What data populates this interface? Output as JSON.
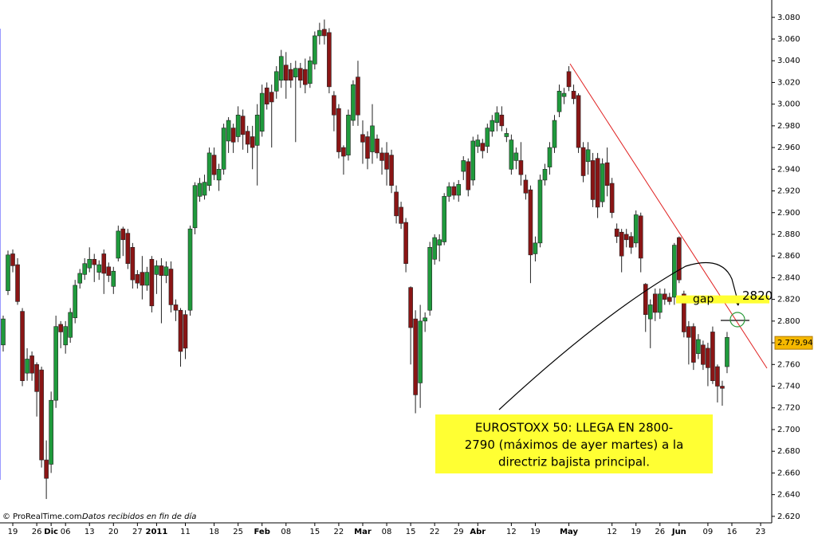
{
  "chart_data": {
    "type": "candlestick",
    "up_color": "#1f9a3c",
    "down_color": "#8a1515",
    "categories": [
      null,
      null,
      "19",
      null,
      null,
      null,
      null,
      "26",
      null,
      null,
      "Dic",
      null,
      null,
      "06",
      null,
      null,
      null,
      null,
      "13",
      null,
      null,
      null,
      null,
      "20",
      null,
      null,
      null,
      null,
      "27",
      null,
      null,
      null,
      "2011",
      null,
      null,
      null,
      null,
      null,
      "11",
      null,
      null,
      null,
      null,
      null,
      "18",
      null,
      null,
      null,
      null,
      "25",
      null,
      null,
      null,
      null,
      "Feb",
      null,
      null,
      null,
      null,
      "08",
      null,
      null,
      null,
      null,
      null,
      "15",
      null,
      null,
      null,
      null,
      "22",
      null,
      null,
      null,
      null,
      "Mar",
      null,
      null,
      null,
      null,
      "08",
      null,
      null,
      null,
      null,
      "15",
      null,
      null,
      null,
      null,
      "22",
      null,
      null,
      null,
      null,
      "29",
      null,
      null,
      null,
      "Abr",
      null,
      null,
      null,
      null,
      null,
      null,
      "12",
      null,
      null,
      null,
      null,
      "19",
      null,
      null,
      null,
      null,
      null,
      null,
      "May",
      null,
      null,
      null,
      null,
      null,
      null,
      null,
      null,
      "12",
      null,
      null,
      null,
      null,
      "19",
      null,
      null,
      null,
      null,
      "26",
      null,
      null,
      null,
      "Jun",
      null,
      null,
      null,
      null,
      null,
      "09",
      null,
      null,
      null,
      null,
      "16",
      null,
      null,
      null,
      null,
      null,
      "23",
      null
    ],
    "open": [
      2778,
      2828,
      2862,
      2852,
      2809,
      2752,
      2768,
      2760,
      2755,
      2672,
      2668,
      2727,
      2797,
      2778,
      2785,
      2803,
      2835,
      2843,
      2849,
      2857,
      2845,
      2862,
      2850,
      2832,
      2858,
      2885,
      2881,
      2868,
      2843,
      2845,
      2833,
      2857,
      2843,
      2851,
      2842,
      2848,
      2815,
      2810,
      2806,
      2810,
      2886,
      2915,
      2916,
      2925,
      2953,
      2930,
      2940,
      2966,
      2978,
      2970,
      2989,
      2975,
      2970,
      2962,
      2975,
      3015,
      3011,
      3012,
      3022,
      3036,
      3032,
      3025,
      3033,
      3032,
      3019,
      3037,
      3063,
      3069,
      3066,
      3008,
      2996,
      2960,
      2953,
      2985,
      3025,
      2972,
      2970,
      2956,
      2968,
      2955,
      2955,
      2953,
      2919,
      2905,
      2891,
      2831,
      2802,
      2743,
      2800,
      2810,
      2857,
      2870,
      2873,
      2915,
      2924,
      2916,
      2938,
      2947,
      2930,
      2961,
      2964,
      2961,
      2975,
      2983,
      2990,
      2970,
      2940,
      2948,
      2948,
      2930,
      2921,
      2862,
      2872,
      2930,
      2942,
      2960,
      2993,
      3007,
      3030,
      3012,
      3008,
      2960,
      2947,
      2948,
      2950,
      2910,
      2946,
      2927,
      2885,
      2882,
      2880,
      2878,
      2872,
      2897,
      2834,
      2802,
      2825,
      2808,
      2825,
      2822,
      2822,
      2877,
      2825,
      2795,
      2795,
      2770,
      2778,
      2775,
      2790,
      2758,
      2740,
      2758,
      null,
      null,
      null,
      null,
      null,
      null,
      null,
      null
    ],
    "high": [
      2805,
      2865,
      2866,
      2858,
      2812,
      2775,
      2772,
      2762,
      2758,
      2690,
      2735,
      2805,
      2800,
      2800,
      2812,
      2838,
      2848,
      2858,
      2868,
      2862,
      2856,
      2866,
      2854,
      2850,
      2888,
      2887,
      2885,
      2872,
      2847,
      2860,
      2850,
      2860,
      2856,
      2858,
      2855,
      2855,
      2820,
      2812,
      2810,
      2888,
      2928,
      2932,
      2935,
      2960,
      2960,
      2945,
      2982,
      2988,
      2982,
      2998,
      2995,
      2980,
      2980,
      3000,
      3018,
      3020,
      3018,
      3035,
      3050,
      3048,
      3038,
      3040,
      3038,
      3042,
      3044,
      3067,
      3075,
      3078,
      3070,
      3012,
      3000,
      2962,
      2995,
      3022,
      3040,
      2985,
      2975,
      3000,
      2972,
      2960,
      2965,
      2958,
      2925,
      2910,
      2895,
      2832,
      2810,
      2815,
      2808,
      2873,
      2880,
      2880,
      2918,
      2928,
      2928,
      2930,
      2952,
      2950,
      2970,
      2972,
      2968,
      2982,
      2990,
      2998,
      2998,
      2978,
      2972,
      2960,
      2965,
      2935,
      2925,
      2878,
      2935,
      2945,
      2965,
      2990,
      3018,
      3015,
      3035,
      3018,
      3010,
      2965,
      2965,
      2955,
      2955,
      2950,
      2960,
      2932,
      2890,
      2885,
      2885,
      2882,
      2902,
      2900,
      2835,
      2820,
      2830,
      2830,
      2830,
      2826,
      2872,
      2878,
      2828,
      2800,
      2798,
      2788,
      2782,
      2780,
      2795,
      2760,
      2745,
      2790,
      null,
      null,
      null,
      null,
      null,
      null,
      null,
      null
    ],
    "low": [
      2772,
      2824,
      2845,
      2815,
      2740,
      2745,
      2745,
      2712,
      2665,
      2636,
      2660,
      2720,
      2775,
      2770,
      2780,
      2798,
      2830,
      2838,
      2845,
      2836,
      2838,
      2825,
      2836,
      2825,
      2855,
      2860,
      2848,
      2830,
      2830,
      2820,
      2828,
      2808,
      2825,
      2798,
      2835,
      2808,
      2800,
      2758,
      2765,
      2805,
      2880,
      2910,
      2912,
      2920,
      2930,
      2920,
      2935,
      2955,
      2955,
      2965,
      2958,
      2955,
      2940,
      2925,
      2970,
      2995,
      2960,
      3005,
      3015,
      3005,
      3015,
      2965,
      3015,
      3010,
      3015,
      3032,
      3055,
      3055,
      3010,
      2975,
      2950,
      2935,
      2948,
      2980,
      2980,
      2945,
      2940,
      2945,
      2950,
      2935,
      2925,
      2918,
      2890,
      2885,
      2845,
      2760,
      2715,
      2720,
      2790,
      2805,
      2852,
      2855,
      2870,
      2910,
      2912,
      2910,
      2930,
      2915,
      2925,
      2955,
      2950,
      2955,
      2970,
      2975,
      2975,
      2965,
      2935,
      2940,
      2925,
      2912,
      2835,
      2855,
      2868,
      2925,
      2935,
      2955,
      2988,
      3000,
      3012,
      3000,
      2955,
      2928,
      2935,
      2905,
      2895,
      2905,
      2915,
      2895,
      2872,
      2845,
      2868,
      2862,
      2868,
      2845,
      2790,
      2775,
      2800,
      2802,
      2815,
      2815,
      2815,
      2835,
      2785,
      2760,
      2755,
      2765,
      2755,
      2740,
      2742,
      2725,
      2722,
      2752,
      null,
      null,
      null,
      null,
      null,
      null,
      null,
      null
    ],
    "close": [
      2802,
      2861,
      2851,
      2818,
      2745,
      2765,
      2752,
      2735,
      2672,
      2655,
      2727,
      2795,
      2790,
      2795,
      2808,
      2833,
      2844,
      2853,
      2857,
      2852,
      2852,
      2844,
      2842,
      2846,
      2883,
      2875,
      2853,
      2838,
      2835,
      2833,
      2845,
      2814,
      2851,
      2842,
      2850,
      2815,
      2810,
      2772,
      2775,
      2885,
      2925,
      2927,
      2928,
      2955,
      2935,
      2940,
      2978,
      2985,
      2965,
      2990,
      2972,
      2963,
      2960,
      2990,
      3010,
      3000,
      3002,
      3030,
      3044,
      3022,
      3022,
      3033,
      3022,
      3018,
      3040,
      3063,
      3068,
      3063,
      3016,
      2990,
      2956,
      2952,
      2990,
      3018,
      2990,
      2965,
      2950,
      2980,
      2955,
      2948,
      2940,
      2925,
      2897,
      2890,
      2853,
      2794,
      2732,
      2800,
      2803,
      2868,
      2877,
      2875,
      2915,
      2924,
      2916,
      2926,
      2948,
      2921,
      2966,
      2967,
      2957,
      2978,
      2985,
      2992,
      2980,
      2973,
      2967,
      2955,
      2935,
      2918,
      2861,
      2872,
      2930,
      2940,
      2960,
      2985,
      3012,
      3010,
      3016,
      3005,
      2960,
      2934,
      2958,
      2912,
      2905,
      2945,
      2925,
      2900,
      2878,
      2860,
      2875,
      2868,
      2898,
      2858,
      2806,
      2815,
      2808,
      2825,
      2820,
      2818,
      2870,
      2838,
      2790,
      2785,
      2762,
      2783,
      2760,
      2757,
      2745,
      2740,
      2738,
      2785,
      null,
      null,
      null,
      null,
      null,
      null,
      null,
      null
    ],
    "ylim": [
      2614,
      3096
    ],
    "yticks": [
      {
        "value": 2620,
        "label": "2.620"
      },
      {
        "value": 2640,
        "label": "2.640"
      },
      {
        "value": 2660,
        "label": "2.660"
      },
      {
        "value": 2680,
        "label": "2.680"
      },
      {
        "value": 2700,
        "label": "2.700"
      },
      {
        "value": 2720,
        "label": "2.720"
      },
      {
        "value": 2740,
        "label": "2.740"
      },
      {
        "value": 2760,
        "label": "2.760"
      },
      {
        "value": 2780,
        "label": "2.780"
      },
      {
        "value": 2800,
        "label": "2.800"
      },
      {
        "value": 2820,
        "label": "2.820"
      },
      {
        "value": 2840,
        "label": "2.840"
      },
      {
        "value": 2860,
        "label": "2.860"
      },
      {
        "value": 2880,
        "label": "2.880"
      },
      {
        "value": 2900,
        "label": "2.900"
      },
      {
        "value": 2920,
        "label": "2.920"
      },
      {
        "value": 2940,
        "label": "2.940"
      },
      {
        "value": 2960,
        "label": "2.960"
      },
      {
        "value": 2980,
        "label": "2.980"
      },
      {
        "value": 3000,
        "label": "3.000"
      },
      {
        "value": 3020,
        "label": "3.020"
      },
      {
        "value": 3040,
        "label": "3.040"
      },
      {
        "value": 3060,
        "label": "3.060"
      },
      {
        "value": 3080,
        "label": "3.080"
      }
    ],
    "current_price": {
      "value": 2779.94,
      "label": "2.779,94"
    },
    "gap": {
      "label": "gap",
      "level": 2820
    },
    "annotation": [
      "EUROSTOXX 50: LLEGA EN 2800-",
      "2790 (máximos de ayer martes) a la",
      "directriz bajista principal."
    ],
    "footer": {
      "source": "© ProRealTime.com",
      "note": "Datos recibidos en fin de día"
    }
  }
}
